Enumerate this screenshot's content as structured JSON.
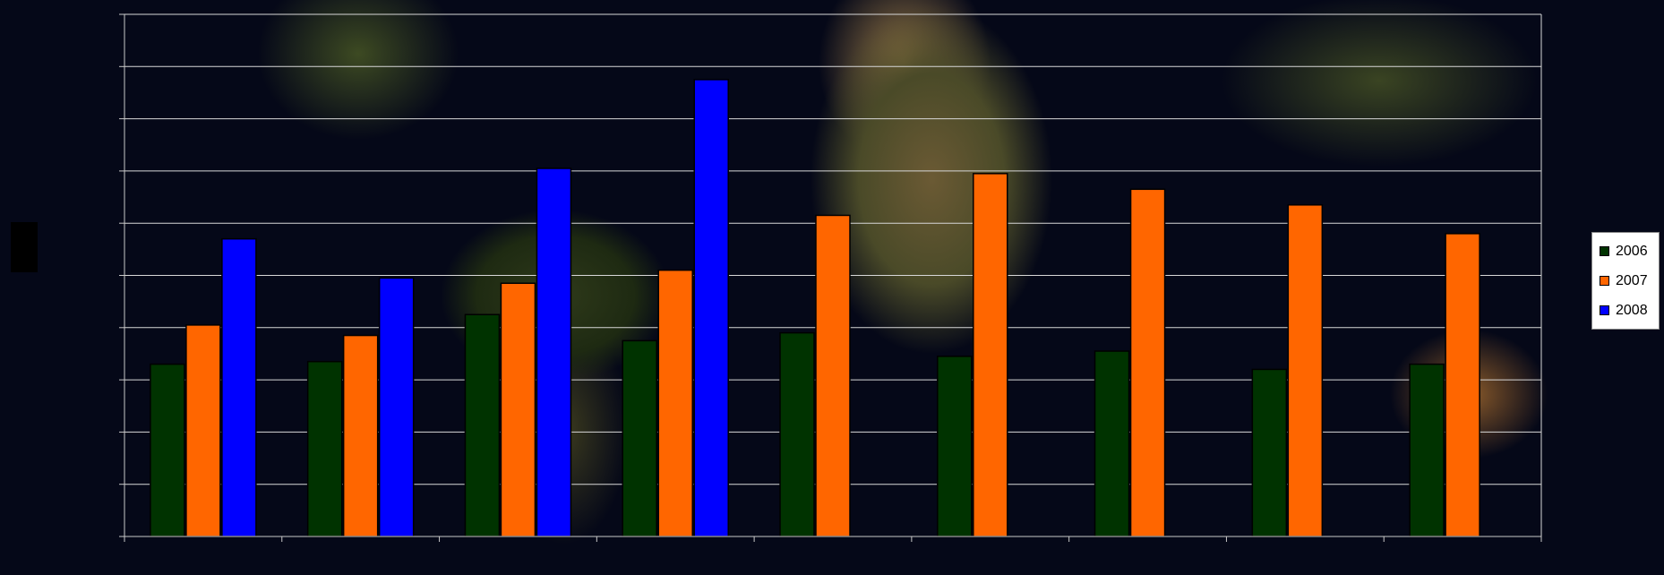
{
  "chart_data": {
    "type": "bar",
    "title": "",
    "xlabel": "",
    "ylabel": "",
    "ylim": [
      0,
      100
    ],
    "categories": [
      "",
      "",
      "",
      "",
      "",
      "",
      "",
      "",
      ""
    ],
    "series": [
      {
        "name": "2006",
        "color": "#003300",
        "values": [
          33,
          33.5,
          42.5,
          37.5,
          39,
          34.5,
          35.5,
          32,
          33
        ]
      },
      {
        "name": "2007",
        "color": "#ff6600",
        "values": [
          40.5,
          38.5,
          48.5,
          51,
          61.5,
          69.5,
          66.5,
          63.5,
          58
        ]
      },
      {
        "name": "2008",
        "color": "#0000ff",
        "values": [
          57,
          49.5,
          70.5,
          null,
          null,
          null,
          null,
          null,
          null
        ]
      }
    ],
    "extra_2008_bar": null,
    "grid": true,
    "legend": "right"
  }
}
